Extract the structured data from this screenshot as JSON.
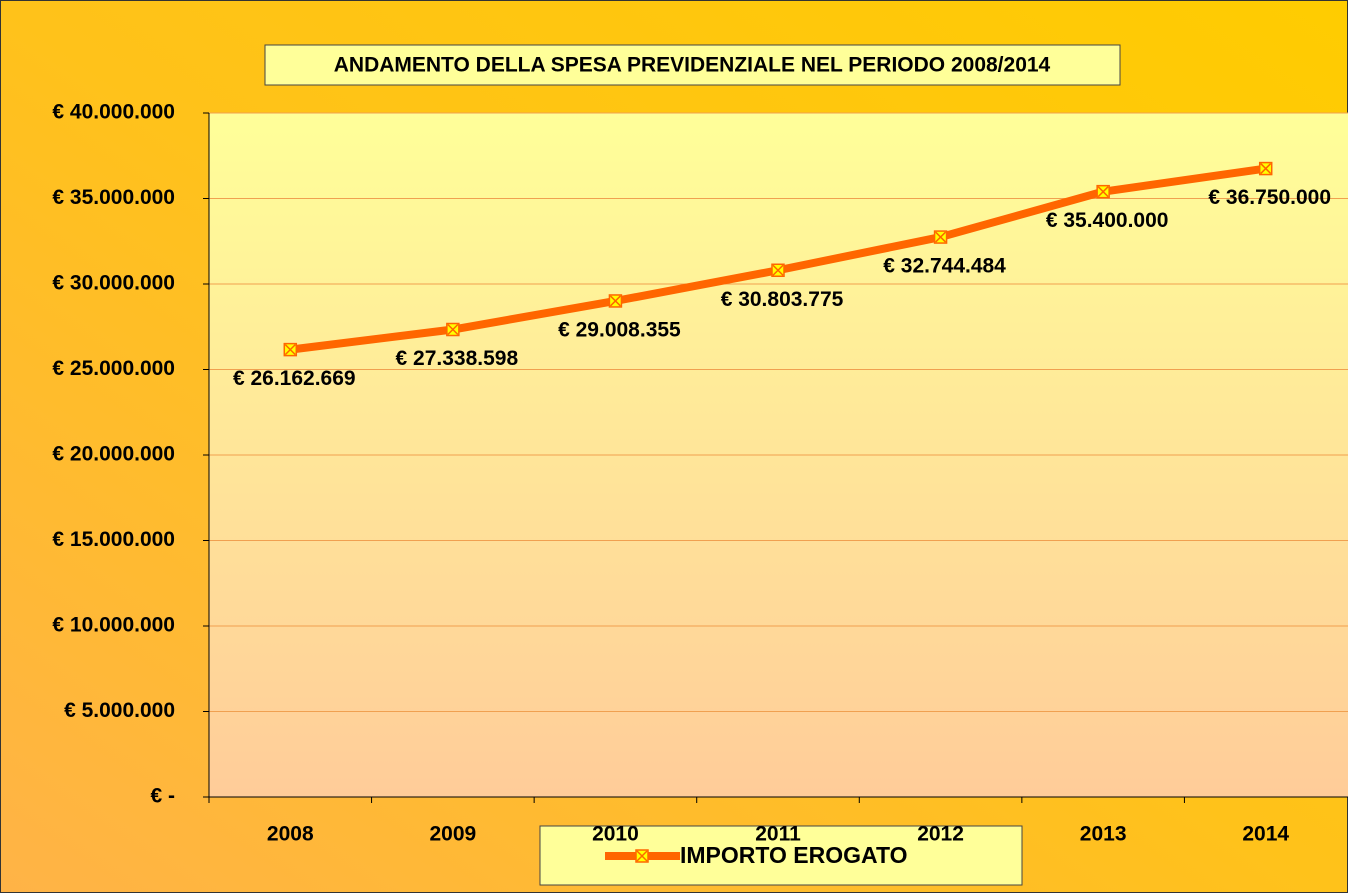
{
  "chart_data": {
    "type": "line",
    "title": "ANDAMENTO DELLA SPESA PREVIDENZIALE NEL PERIODO 2008/2014",
    "categories": [
      "2008",
      "2009",
      "2010",
      "2011",
      "2012",
      "2013",
      "2014"
    ],
    "series": [
      {
        "name": "IMPORTO EROGATO",
        "color": "#ff6600",
        "values": [
          26162669,
          27338598,
          29008355,
          30803775,
          32744484,
          35400000,
          36750000
        ],
        "value_labels": [
          "€ 26.162.669",
          "€ 27.338.598",
          "€ 29.008.355",
          "€ 30.803.775",
          "€ 32.744.484",
          "€ 35.400.000",
          "€ 36.750.000"
        ]
      }
    ],
    "ylim": [
      0,
      40000000
    ],
    "yticks": [
      {
        "value": 0,
        "label": "€ -"
      },
      {
        "value": 5000000,
        "label": "€ 5.000.000"
      },
      {
        "value": 10000000,
        "label": "€ 10.000.000"
      },
      {
        "value": 15000000,
        "label": "€ 15.000.000"
      },
      {
        "value": 20000000,
        "label": "€ 20.000.000"
      },
      {
        "value": 25000000,
        "label": "€ 25.000.000"
      },
      {
        "value": 30000000,
        "label": "€ 30.000.000"
      },
      {
        "value": 35000000,
        "label": "€ 35.000.000"
      },
      {
        "value": 40000000,
        "label": "€ 40.000.000"
      }
    ],
    "grid": true,
    "legend": "bottom"
  }
}
